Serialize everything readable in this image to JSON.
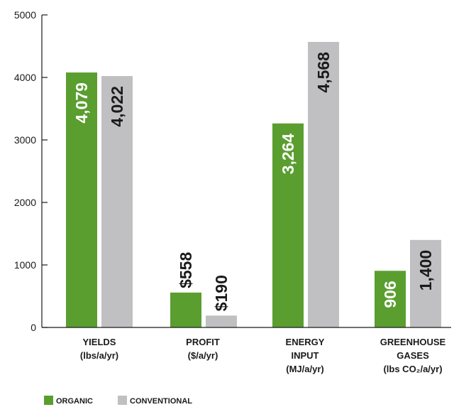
{
  "chart_data": {
    "type": "bar",
    "categories": [
      [
        "YIELDS",
        "(lbs/a/yr)"
      ],
      [
        "PROFIT",
        "($/a/yr)"
      ],
      [
        "ENERGY",
        "INPUT",
        "(MJ/a/yr)"
      ],
      [
        "GREENHOUSE",
        "GASES",
        "(lbs CO₂/a/yr)"
      ]
    ],
    "series": [
      {
        "name": "ORGANIC",
        "color": "#5a9e2f",
        "label_color": "#ffffff",
        "values": [
          4079,
          558,
          3264,
          906
        ],
        "labels": [
          "4,079",
          "$558",
          "3,264",
          "906"
        ]
      },
      {
        "name": "CONVENTIONAL",
        "color": "#c0c0c2",
        "label_color": "#1a1a1a",
        "values": [
          4022,
          190,
          4568,
          1400
        ],
        "labels": [
          "4,022",
          "$190",
          "4,568",
          "1,400"
        ]
      }
    ],
    "ylim": [
      0,
      5000
    ],
    "yticks": [
      0,
      1000,
      2000,
      3000,
      4000,
      5000
    ],
    "ytick_labels": [
      "0",
      "1000",
      "2000",
      "3000",
      "4000",
      "5000"
    ],
    "grid": false,
    "legend": "bottom-left"
  }
}
